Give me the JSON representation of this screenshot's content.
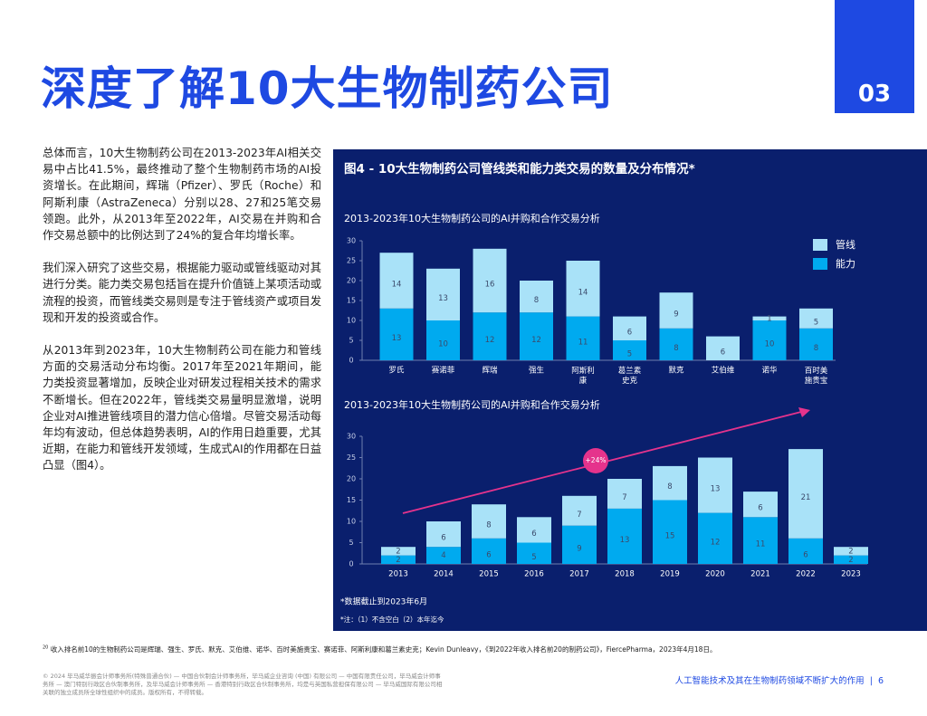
{
  "header": {
    "title": "深度了解10大生物制药公司",
    "section": "03"
  },
  "body": {
    "paragraphs": [
      "总体而言，10大生物制药公司在2013-2023年AI相关交易中占比41.5%，最终推动了整个生物制药市场的AI投资增长。在此期间，辉瑞（Pfizer）、罗氏（Roche）和阿斯利康（AstraZeneca）分别以28、27和25笔交易领跑。此外，从2013年至2022年，AI交易在并购和合作交易总额中的比例达到了24%的复合年均增长率。",
      "我们深入研究了这些交易，根据能力驱动或管线驱动对其进行分类。能力类交易包括旨在提升价值链上某项活动或流程的投资，而管线类交易则是专注于管线资产或项目发现和开发的投资或合作。",
      "从2013年到2023年，10大生物制药公司在能力和管线方面的交易活动分布均衡。2017年至2021年期间，能力类投资显著增加，反映企业对研发过程相关技术的需求不断增长。但在2022年，管线类交易量明显激增，说明企业对AI推进管线项目的潜力信心倍增。尽管交易活动每年均有波动，但总体趋势表明，AI的作用日趋重要，尤其近期，在能力和管线开发领域，生成式AI的作用都在日益凸显（图4）。"
    ]
  },
  "figure": {
    "title": "图4 - 10大生物制药公司管线类和能力类交易的数量及分布情况*",
    "notes": [
      "*数据截止到2023年6月",
      "*注：（1）不含空白（2）本年迄今"
    ]
  },
  "chart_data": [
    {
      "type": "bar",
      "stacked": true,
      "title": "2013-2023年10大生物制药公司的AI并购和合作交易分析",
      "categories": [
        "罗氏",
        "赛诺菲",
        "辉瑞",
        "强生",
        "阿斯利康",
        "葛兰素史克",
        "默克",
        "艾伯维",
        "诺华",
        "百时美施贵宝"
      ],
      "series": [
        {
          "name": "能力",
          "color": "#00aaef",
          "values": [
            13,
            10,
            12,
            12,
            11,
            5,
            8,
            null,
            10,
            8
          ]
        },
        {
          "name": "管线",
          "color": "#a9e2f8",
          "values": [
            14,
            13,
            16,
            8,
            14,
            6,
            9,
            6,
            1,
            5
          ]
        }
      ],
      "ylim": [
        0,
        30
      ],
      "yticks": [
        0,
        5,
        10,
        15,
        20,
        25,
        30
      ],
      "legend": "top-right"
    },
    {
      "type": "bar",
      "stacked": true,
      "title": "2013-2023年10大生物制药公司的AI并购和合作交易分析",
      "categories": [
        "2013",
        "2014",
        "2015",
        "2016",
        "2017",
        "2018",
        "2019",
        "2020",
        "2021",
        "2022",
        "2023"
      ],
      "series": [
        {
          "color": "#00aaef",
          "values": [
            2,
            4,
            6,
            5,
            9,
            13,
            15,
            12,
            11,
            6,
            2
          ]
        },
        {
          "color": "#a9e2f8",
          "values": [
            2,
            6,
            8,
            6,
            7,
            7,
            8,
            13,
            6,
            21,
            2
          ]
        }
      ],
      "ylim": [
        0,
        30
      ],
      "yticks": [
        0,
        5,
        10,
        15,
        20,
        25,
        30
      ],
      "annotation": "+24%"
    }
  ],
  "footnote": {
    "marker": "20",
    "text": "收入排名前10的生物制药公司是辉瑞、强生、罗氏、默克、艾伯维、诺华、百时美施贵宝、赛诺菲、阿斯利康和葛兰素史克；Kevin Dunleavy，《到2022年收入排名前20的制药公司》，FiercePharma，2023年4月18日。"
  },
  "footer": {
    "legal": "© 2024 毕马威华振会计师事务所(特殊普通合伙) — 中国合伙制会计师事务所，毕马威企业咨询 (中国) 有限公司 — 中国有限责任公司，毕马威会计师事务所 — 澳门特别行政区合伙制事务所，及毕马威会计师事务所 — 香港特别行政区合伙制事务所，均是与英国私营担保有限公司 — 毕马威国际有限公司相关联的独立成员所全球性组织中的成员。版权所有，不得转载。",
    "running_title": "人工智能技术及其在生物制药领域不断扩大的作用",
    "page": "6"
  }
}
